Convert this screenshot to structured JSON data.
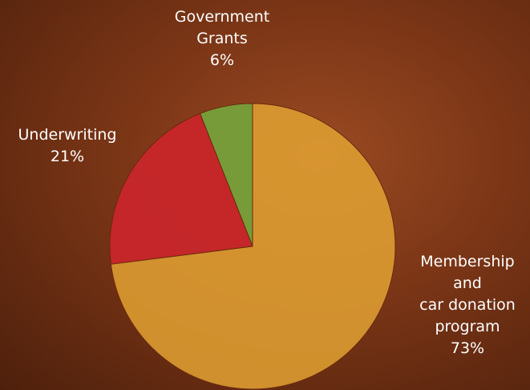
{
  "chart_data": {
    "type": "pie",
    "categories": [
      "Government\nGrants",
      "Underwriting",
      "Membership\nand\ncar donation\nprogram"
    ],
    "values": [
      6,
      21,
      73
    ],
    "value_labels": [
      "6%",
      "21%",
      "73%"
    ],
    "colors": [
      "#76a03a",
      "#c8262a",
      "#e2a232"
    ]
  }
}
